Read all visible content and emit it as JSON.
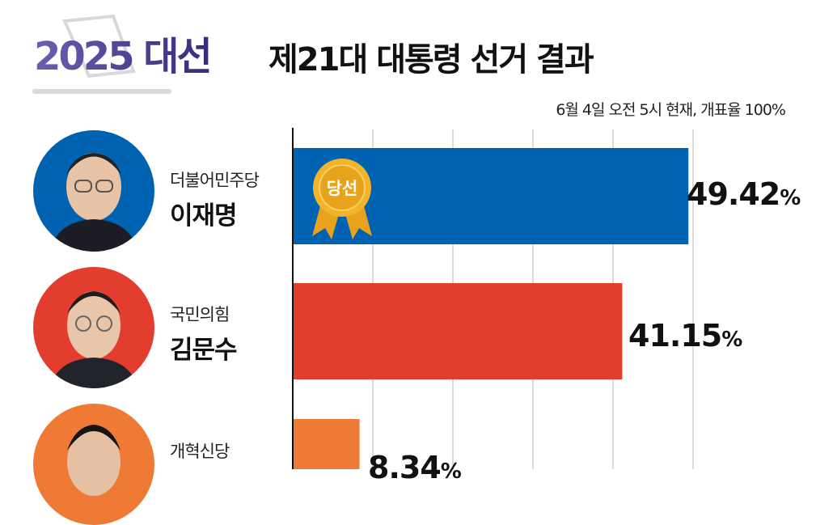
{
  "header": {
    "logo_text": "2025 대선",
    "title": "제21대 대통령 선거 결과",
    "subtitle": "6월 4일 오전 5시 현재, 개표율 100%"
  },
  "badge": {
    "label": "당선"
  },
  "chart_data": {
    "type": "bar",
    "orientation": "horizontal",
    "categories": [
      "이재명",
      "김문수",
      "개혁신당"
    ],
    "parties": [
      "더불어민주당",
      "국민의힘",
      "개혁신당"
    ],
    "values": [
      49.42,
      41.15,
      8.34
    ],
    "value_labels": [
      "49.42",
      "41.15",
      "8.34"
    ],
    "unit": "%",
    "colors": [
      "#0063b2",
      "#e33d2f",
      "#ef7a35"
    ],
    "xlim": [
      0,
      50
    ],
    "grid": true,
    "winner": "이재명"
  },
  "candidates": [
    {
      "party": "더불어민주당",
      "name": "이재명",
      "value": "49.42",
      "unit": "%",
      "color": "#0063b2"
    },
    {
      "party": "국민의힘",
      "name": "김문수",
      "value": "41.15",
      "unit": "%",
      "color": "#e33d2f"
    },
    {
      "party": "개혁신당",
      "value": "8.34",
      "unit": "%",
      "color": "#ef7a35"
    }
  ]
}
